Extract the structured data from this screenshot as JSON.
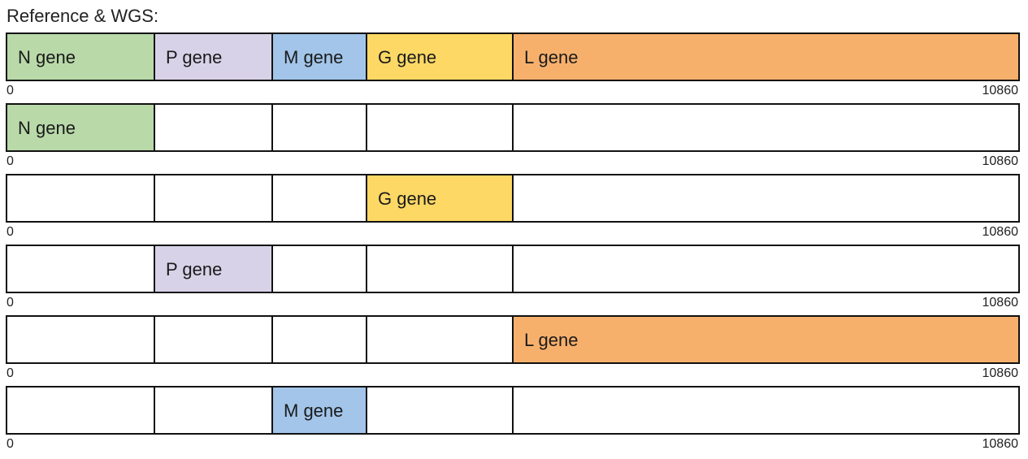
{
  "title": "Reference & WGS:",
  "genome_length": 10860,
  "genes": [
    {
      "id": "N",
      "label": "N gene",
      "start": 0,
      "end": 1588,
      "color": "#b9d9a9"
    },
    {
      "id": "P",
      "label": "P gene",
      "start": 1588,
      "end": 2843,
      "color": "#d8d2e8"
    },
    {
      "id": "M",
      "label": "M gene",
      "start": 2843,
      "end": 3853,
      "color": "#a2c5e9"
    },
    {
      "id": "G",
      "label": "G gene",
      "start": 3853,
      "end": 5422,
      "color": "#fdd865"
    },
    {
      "id": "L",
      "label": "L gene",
      "start": 5422,
      "end": 10860,
      "color": "#f7b06c"
    }
  ],
  "tracks": [
    {
      "highlight": [
        "N",
        "P",
        "M",
        "G",
        "L"
      ],
      "axis_min": "0",
      "axis_max": "10860"
    },
    {
      "highlight": [
        "N"
      ],
      "axis_min": "0",
      "axis_max": "10860"
    },
    {
      "highlight": [
        "G"
      ],
      "axis_min": "0",
      "axis_max": "10860"
    },
    {
      "highlight": [
        "P"
      ],
      "axis_min": "0",
      "axis_max": "10860"
    },
    {
      "highlight": [
        "L"
      ],
      "axis_min": "0",
      "axis_max": "10860"
    },
    {
      "highlight": [
        "M"
      ],
      "axis_min": "0",
      "axis_max": "10860"
    }
  ]
}
